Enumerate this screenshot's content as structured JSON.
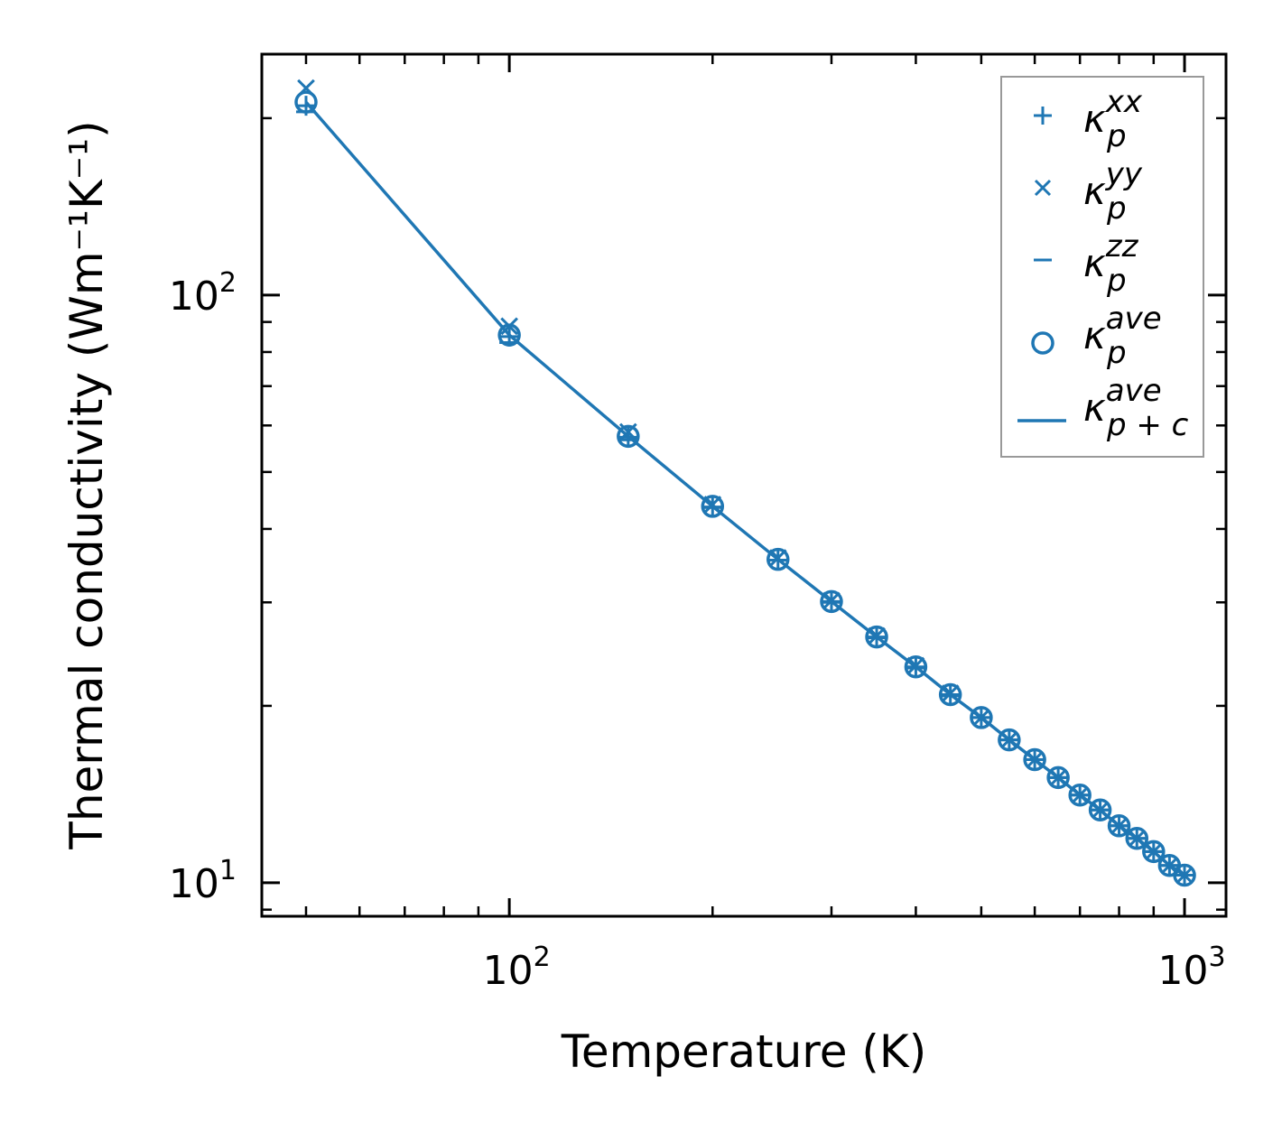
{
  "chart_data": {
    "type": "scatter",
    "xscale": "log",
    "yscale": "log",
    "xlabel": "Temperature (K)",
    "ylabel": "Thermal conductivity (Wm⁻¹K⁻¹)",
    "xlim": [
      43,
      1152
    ],
    "ylim": [
      8.77,
      257
    ],
    "xticks": [
      {
        "value": 100,
        "base": "10",
        "exp": "2"
      },
      {
        "value": 1000,
        "base": "10",
        "exp": "3"
      }
    ],
    "yticks": [
      {
        "value": 10,
        "base": "10",
        "exp": "1"
      },
      {
        "value": 100,
        "base": "10",
        "exp": "2"
      }
    ],
    "x": [
      50,
      100,
      150,
      200,
      250,
      300,
      350,
      400,
      450,
      500,
      550,
      600,
      650,
      700,
      750,
      800,
      850,
      900,
      950,
      1000
    ],
    "series": [
      {
        "name": "kappa_p^xx",
        "kappa": "κ",
        "sub": "p",
        "sup": "xx",
        "marker": "plus",
        "values": [
          210,
          85.0,
          57.3,
          43.6,
          35.4,
          30.1,
          26.2,
          23.3,
          20.9,
          19.1,
          17.5,
          16.2,
          15.1,
          14.1,
          13.3,
          12.5,
          11.9,
          11.3,
          10.7,
          10.3
        ]
      },
      {
        "name": "kappa_p^yy",
        "kappa": "κ",
        "sub": "p",
        "sup": "yy",
        "marker": "x",
        "values": [
          225,
          88.5,
          58.5,
          44.0,
          35.7,
          30.2,
          26.3,
          23.4,
          21.0,
          19.1,
          17.5,
          16.2,
          15.1,
          14.1,
          13.3,
          12.5,
          11.9,
          11.3,
          10.7,
          10.3
        ]
      },
      {
        "name": "kappa_p^zz",
        "kappa": "κ",
        "sub": "p",
        "sup": "zz",
        "marker": "hline",
        "values": [
          205,
          83.0,
          56.7,
          43.5,
          35.4,
          30.0,
          26.1,
          23.2,
          20.8,
          19.1,
          17.5,
          16.2,
          15.1,
          14.1,
          13.3,
          12.5,
          11.9,
          11.3,
          10.7,
          10.3
        ]
      },
      {
        "name": "kappa_p^ave",
        "kappa": "κ",
        "sub": "p",
        "sup": "ave",
        "marker": "circle",
        "values": [
          213,
          85.5,
          57.5,
          43.7,
          35.5,
          30.1,
          26.2,
          23.3,
          20.9,
          19.1,
          17.5,
          16.2,
          15.1,
          14.1,
          13.3,
          12.5,
          11.9,
          11.3,
          10.7,
          10.3
        ]
      },
      {
        "name": "kappa_p+c^ave",
        "kappa": "κ",
        "sub": "p + c",
        "sup": "ave",
        "marker": "line",
        "values": [
          213,
          85.5,
          57.5,
          43.7,
          35.5,
          30.1,
          26.2,
          23.3,
          20.9,
          19.1,
          17.5,
          16.2,
          15.1,
          14.1,
          13.3,
          12.5,
          11.9,
          11.3,
          10.7,
          10.3
        ]
      }
    ],
    "color": "#1f77b4",
    "grid": false,
    "legend_position": "top-right"
  }
}
